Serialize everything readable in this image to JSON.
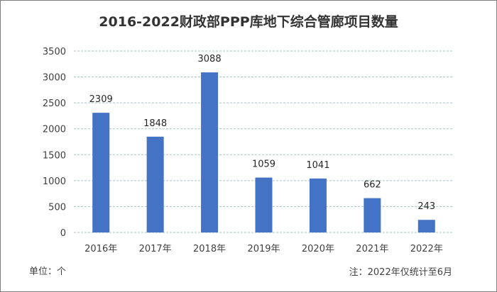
{
  "chart_data": {
    "type": "bar",
    "title": "2016-2022财政部PPP库地下综合管廊项目数量",
    "categories": [
      "2016年",
      "2017年",
      "2018年",
      "2019年",
      "2020年",
      "2021年",
      "2022年"
    ],
    "values": [
      2309,
      1848,
      3088,
      1059,
      1041,
      662,
      243
    ],
    "ylim": [
      0,
      3500
    ],
    "yticks": [
      "0",
      "500",
      "1000",
      "1500",
      "2000",
      "2500",
      "3000",
      "3500"
    ],
    "grid": true,
    "bar_color": "#4472c4",
    "grid_color": "#a9c4c4"
  },
  "notes": {
    "unit": "单位：个",
    "footnote": "注：2022年仅统计至6月"
  }
}
